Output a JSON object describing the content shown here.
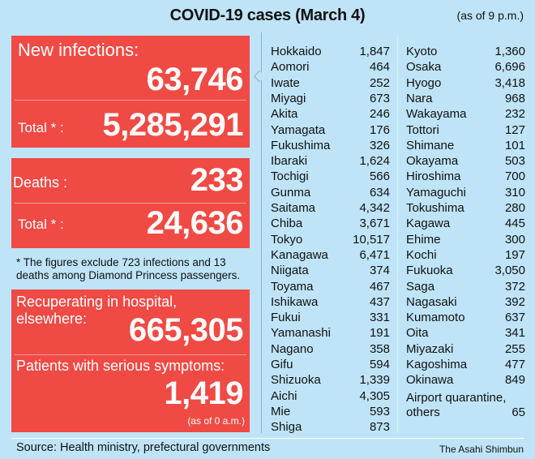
{
  "title": "COVID-19 cases (March 4)",
  "as_of": "(as of 9 p.m.)",
  "new_infections": {
    "label": "New infections:",
    "value": "63,746",
    "total_label": "Total * :",
    "total": "5,285,291"
  },
  "deaths": {
    "label": "Deaths :",
    "value": "233",
    "total_label": "Total * :",
    "total": "24,636"
  },
  "footnote": "* The figures exclude 723 infections and 13 deaths among Diamond Princess passengers.",
  "recuperating": {
    "label": "Recuperating in hospital, elsewhere:",
    "value": "665,305"
  },
  "serious": {
    "label": "Patients with serious symptoms:",
    "value": "1,419",
    "note": "(as of 0 a.m.)"
  },
  "prefectures_left": [
    [
      "Hokkaido",
      "1,847"
    ],
    [
      "Aomori",
      "464"
    ],
    [
      "Iwate",
      "252"
    ],
    [
      "Miyagi",
      "673"
    ],
    [
      "Akita",
      "246"
    ],
    [
      "Yamagata",
      "176"
    ],
    [
      "Fukushima",
      "326"
    ],
    [
      "Ibaraki",
      "1,624"
    ],
    [
      "Tochigi",
      "566"
    ],
    [
      "Gunma",
      "634"
    ],
    [
      "Saitama",
      "4,342"
    ],
    [
      "Chiba",
      "3,671"
    ],
    [
      "Tokyo",
      "10,517"
    ],
    [
      "Kanagawa",
      "6,471"
    ],
    [
      "Niigata",
      "374"
    ],
    [
      "Toyama",
      "467"
    ],
    [
      "Ishikawa",
      "437"
    ],
    [
      "Fukui",
      "331"
    ],
    [
      "Yamanashi",
      "191"
    ],
    [
      "Nagano",
      "358"
    ],
    [
      "Gifu",
      "594"
    ],
    [
      "Shizuoka",
      "1,339"
    ],
    [
      "Aichi",
      "4,305"
    ],
    [
      "Mie",
      "593"
    ],
    [
      "Shiga",
      "873"
    ]
  ],
  "prefectures_right": [
    [
      "Kyoto",
      "1,360"
    ],
    [
      "Osaka",
      "6,696"
    ],
    [
      "Hyogo",
      "3,418"
    ],
    [
      "Nara",
      "968"
    ],
    [
      "Wakayama",
      "232"
    ],
    [
      "Tottori",
      "127"
    ],
    [
      "Shimane",
      "101"
    ],
    [
      "Okayama",
      "503"
    ],
    [
      "Hiroshima",
      "700"
    ],
    [
      "Yamaguchi",
      "310"
    ],
    [
      "Tokushima",
      "280"
    ],
    [
      "Kagawa",
      "445"
    ],
    [
      "Ehime",
      "300"
    ],
    [
      "Kochi",
      "197"
    ],
    [
      "Fukuoka",
      "3,050"
    ],
    [
      "Saga",
      "372"
    ],
    [
      "Nagasaki",
      "392"
    ],
    [
      "Kumamoto",
      "637"
    ],
    [
      "Oita",
      "341"
    ],
    [
      "Miyazaki",
      "255"
    ],
    [
      "Kagoshima",
      "477"
    ],
    [
      "Okinawa",
      "849"
    ]
  ],
  "airport": {
    "label1": "Airport quarantine,",
    "label2": "others",
    "value": "65"
  },
  "source": "Source: Health ministry, prefectural governments",
  "credit": "The Asahi Shimbun",
  "colors": {
    "background": "#bfe4f7",
    "panel": "#f04a45"
  }
}
